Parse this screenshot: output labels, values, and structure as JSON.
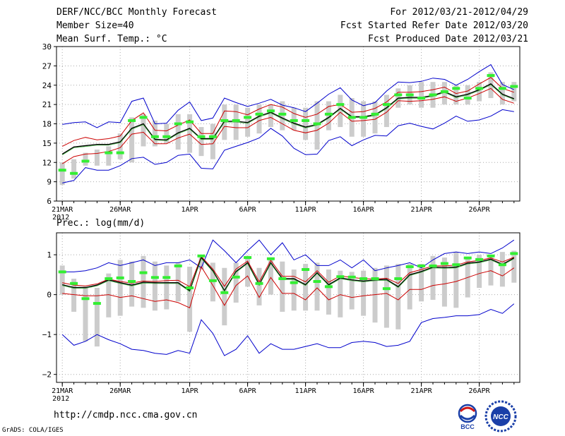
{
  "header": {
    "left": [
      "DERF/NCC/BCC Monthly Forecast",
      "Member Size=40",
      "Mean Surf. Temp.: °C"
    ],
    "right": [
      "For 2012/03/21-2012/04/29",
      "Fcst Started Refer Date 2012/03/20",
      "Fcst Produced Date 2012/03/21"
    ]
  },
  "panel2_label": "Prec.: log(mm/d)",
  "footer": {
    "url": "http://cmdp.ncc.cma.gov.cn",
    "credit": "GrADS: COLA/IGES"
  },
  "logos": {
    "bcc": "BCC",
    "ncc": "NCC"
  },
  "colors": {
    "median": "#000000",
    "quartile": "#cc0000",
    "extreme": "#0000cc",
    "mark": "#33ee33",
    "box": "#cccccc",
    "grid": "#aaaaaa"
  },
  "chart_data": [
    {
      "type": "line",
      "title": "Mean Surf. Temp.: °C",
      "x_ticks": [
        "21MAR",
        "26MAR",
        "1APR",
        "6APR",
        "11APR",
        "16APR",
        "21APR",
        "26APR"
      ],
      "x_tick_days": [
        1,
        6,
        12,
        17,
        22,
        27,
        32,
        37
      ],
      "year_label": "2012",
      "y_ticks": [
        6,
        9,
        12,
        15,
        18,
        21,
        24,
        27,
        30
      ],
      "ylim": [
        6,
        30
      ],
      "days": 40,
      "series": [
        {
          "name": "max",
          "values": [
            17.9,
            18.2,
            18.3,
            17.4,
            18.3,
            18.2,
            21.5,
            22.0,
            18.0,
            18.1,
            20.1,
            21.4,
            18.5,
            18.9,
            22.0,
            21.3,
            20.7,
            21.2,
            21.8,
            20.9,
            20.5,
            19.9,
            21.2,
            22.6,
            23.6,
            21.7,
            20.8,
            21.3,
            23.1,
            24.5,
            24.4,
            24.6,
            25.1,
            24.9,
            24.0,
            24.9,
            26.1,
            27.2,
            24.1,
            23.3
          ]
        },
        {
          "name": "q75",
          "values": [
            14.5,
            15.4,
            15.9,
            15.5,
            15.7,
            16.1,
            18.5,
            19.7,
            17.0,
            16.9,
            17.8,
            18.6,
            16.5,
            16.5,
            20.0,
            19.9,
            19.4,
            20.3,
            21.0,
            20.6,
            19.6,
            19.0,
            19.5,
            20.7,
            21.0,
            19.8,
            19.9,
            20.4,
            21.4,
            22.9,
            22.9,
            23.0,
            23.3,
            23.7,
            22.7,
            23.1,
            24.2,
            25.2,
            23.5,
            22.9
          ]
        },
        {
          "name": "median",
          "values": [
            13.3,
            14.4,
            14.6,
            14.8,
            14.8,
            15.2,
            17.3,
            18.0,
            15.6,
            15.5,
            16.6,
            17.3,
            15.7,
            15.7,
            18.4,
            18.4,
            18.2,
            19.2,
            19.8,
            18.9,
            18.1,
            17.5,
            17.9,
            19.0,
            20.4,
            19.1,
            19.1,
            19.4,
            20.5,
            22.0,
            22.1,
            22.1,
            22.4,
            23.0,
            22.2,
            22.6,
            23.3,
            24.2,
            22.6,
            21.9
          ]
        },
        {
          "name": "q25",
          "values": [
            11.8,
            12.9,
            13.3,
            13.4,
            13.7,
            14.3,
            16.4,
            16.7,
            14.9,
            14.9,
            15.8,
            16.4,
            14.8,
            14.9,
            17.6,
            17.4,
            17.4,
            18.5,
            19.0,
            18.0,
            17.0,
            16.6,
            17.0,
            18.1,
            19.8,
            18.4,
            18.5,
            18.7,
            19.8,
            21.6,
            21.5,
            21.6,
            21.8,
            22.2,
            21.5,
            22.0,
            22.7,
            23.5,
            21.8,
            21.2
          ]
        },
        {
          "name": "min",
          "values": [
            8.8,
            9.2,
            11.2,
            10.8,
            10.8,
            11.5,
            12.6,
            12.8,
            11.7,
            12.0,
            13.1,
            13.3,
            11.1,
            11.0,
            13.9,
            14.5,
            15.1,
            15.8,
            17.3,
            16.1,
            14.2,
            13.2,
            13.3,
            15.4,
            16.0,
            14.6,
            15.5,
            16.2,
            16.1,
            17.7,
            18.1,
            17.6,
            17.2,
            18.1,
            19.2,
            18.4,
            18.6,
            19.2,
            20.2,
            19.9
          ]
        },
        {
          "name": "hindcast",
          "values": [
            10.8,
            10.3,
            12.2,
            null,
            13.5,
            13.5,
            18.5,
            19.0,
            16.0,
            16.0,
            18.0,
            18.3,
            16.0,
            16.0,
            18.5,
            18.5,
            19.0,
            19.5,
            20.0,
            19.5,
            18.5,
            18.5,
            18.0,
            19.5,
            21.0,
            19.0,
            19.0,
            19.5,
            21.0,
            22.5,
            22.5,
            22.0,
            22.5,
            23.0,
            23.5,
            22.0,
            23.5,
            25.5,
            23.5,
            23.8
          ]
        },
        {
          "name": "box_low",
          "values": [
            8.5,
            9.5,
            11.5,
            11.5,
            11.5,
            12.5,
            12.0,
            14.5,
            14.5,
            15.0,
            14.0,
            13.5,
            13.0,
            12.5,
            15.5,
            15.5,
            16.0,
            16.5,
            17.5,
            17.0,
            17.0,
            15.5,
            14.0,
            17.0,
            17.5,
            16.0,
            16.0,
            16.5,
            17.5,
            20.5,
            21.0,
            20.5,
            20.5,
            21.0,
            21.0,
            21.0,
            21.5,
            22.0,
            21.0,
            21.5
          ]
        },
        {
          "name": "box_high",
          "values": [
            12.0,
            12.5,
            13.5,
            14.0,
            14.5,
            16.5,
            19.0,
            19.5,
            18.5,
            18.0,
            19.5,
            19.5,
            17.5,
            18.0,
            21.0,
            21.0,
            20.5,
            21.0,
            21.0,
            21.5,
            20.5,
            20.5,
            21.5,
            21.5,
            22.5,
            22.0,
            21.5,
            21.5,
            22.5,
            23.5,
            24.0,
            24.5,
            24.5,
            24.5,
            24.0,
            24.0,
            24.5,
            26.0,
            24.5,
            24.5
          ]
        }
      ]
    },
    {
      "type": "line",
      "title": "Prec.: log(mm/d)",
      "x_ticks": [
        "21MAR",
        "26MAR",
        "1APR",
        "6APR",
        "11APR",
        "16APR",
        "21APR",
        "26APR"
      ],
      "x_tick_days": [
        1,
        6,
        12,
        17,
        22,
        27,
        32,
        37
      ],
      "year_label": "2012",
      "y_ticks": [
        -2,
        -1,
        0,
        1
      ],
      "ylim": [
        -2.2,
        1.55
      ],
      "days": 40,
      "series": [
        {
          "name": "max",
          "values": [
            0.57,
            0.57,
            0.6,
            0.67,
            0.8,
            0.73,
            0.8,
            0.87,
            0.73,
            0.8,
            0.8,
            0.87,
            0.67,
            1.37,
            1.1,
            0.8,
            1.1,
            1.37,
            1.0,
            1.3,
            0.87,
            1.0,
            0.73,
            0.73,
            0.87,
            0.67,
            0.87,
            0.6,
            0.67,
            0.73,
            0.8,
            0.67,
            0.87,
            1.03,
            1.07,
            1.03,
            1.07,
            1.03,
            1.17,
            1.37
          ]
        },
        {
          "name": "q75",
          "values": [
            0.3,
            0.24,
            0.22,
            0.27,
            0.39,
            0.33,
            0.29,
            0.34,
            0.33,
            0.35,
            0.36,
            0.2,
            0.96,
            0.64,
            0.21,
            0.64,
            0.84,
            0.32,
            0.86,
            0.46,
            0.46,
            0.32,
            0.6,
            0.31,
            0.47,
            0.43,
            0.4,
            0.39,
            0.41,
            0.28,
            0.55,
            0.63,
            0.72,
            0.72,
            0.74,
            0.82,
            0.86,
            0.92,
            0.82,
            0.94
          ]
        },
        {
          "name": "median",
          "values": [
            0.25,
            0.18,
            0.18,
            0.24,
            0.37,
            0.3,
            0.24,
            0.31,
            0.3,
            0.3,
            0.3,
            0.1,
            0.93,
            0.6,
            0.1,
            0.58,
            0.8,
            0.25,
            0.8,
            0.4,
            0.4,
            0.25,
            0.55,
            0.25,
            0.42,
            0.37,
            0.34,
            0.37,
            0.38,
            0.2,
            0.5,
            0.58,
            0.69,
            0.68,
            0.69,
            0.79,
            0.82,
            0.89,
            0.76,
            0.92
          ]
        },
        {
          "name": "q25",
          "values": [
            0.03,
            0.0,
            -0.03,
            -0.03,
            0.0,
            -0.07,
            -0.03,
            -0.1,
            -0.17,
            -0.13,
            -0.2,
            -0.33,
            0.7,
            0.23,
            -0.27,
            0.23,
            0.47,
            -0.07,
            0.43,
            0.03,
            0.03,
            -0.13,
            0.17,
            -0.13,
            0.0,
            -0.07,
            -0.03,
            0.0,
            0.03,
            -0.13,
            0.13,
            0.13,
            0.23,
            0.27,
            0.33,
            0.43,
            0.53,
            0.6,
            0.47,
            0.67
          ]
        },
        {
          "name": "min",
          "values": [
            -1.0,
            -1.27,
            -1.17,
            -1.0,
            -1.13,
            -1.23,
            -1.37,
            -1.4,
            -1.47,
            -1.5,
            -1.4,
            -1.47,
            -0.63,
            -0.97,
            -1.53,
            -1.37,
            -1.03,
            -1.47,
            -1.23,
            -1.37,
            -1.37,
            -1.3,
            -1.23,
            -1.33,
            -1.33,
            -1.2,
            -1.17,
            -1.2,
            -1.3,
            -1.27,
            -1.17,
            -0.7,
            -0.6,
            -0.57,
            -0.53,
            -0.53,
            -0.5,
            -0.37,
            -0.47,
            -0.23
          ]
        },
        {
          "name": "hindcast",
          "values": [
            0.57,
            0.28,
            -0.1,
            -0.22,
            0.4,
            0.42,
            0.33,
            0.55,
            0.43,
            0.43,
            0.72,
            0.17,
            0.97,
            0.35,
            0.05,
            0.44,
            0.93,
            0.28,
            0.9,
            0.4,
            0.3,
            0.63,
            0.33,
            0.2,
            0.45,
            0.44,
            0.4,
            0.4,
            0.15,
            0.4,
            0.7,
            0.72,
            0.72,
            0.78,
            0.75,
            0.92,
            0.88,
            0.97,
            0.75,
            1.03
          ]
        },
        {
          "name": "box_low",
          "values": [
            0.0,
            -0.43,
            -1.17,
            -1.3,
            -0.57,
            -0.53,
            -0.3,
            -0.33,
            -0.4,
            -0.37,
            -0.17,
            -0.93,
            0.63,
            -0.17,
            -0.77,
            -0.2,
            0.2,
            -0.27,
            0.0,
            -0.43,
            -0.4,
            -0.4,
            -0.4,
            -0.5,
            -0.57,
            -0.37,
            -0.53,
            -0.7,
            -0.83,
            -0.87,
            -0.37,
            -0.17,
            -0.13,
            -0.3,
            -0.33,
            -0.07,
            0.17,
            0.23,
            0.2,
            0.3
          ]
        },
        {
          "name": "box_high",
          "values": [
            0.73,
            0.4,
            0.2,
            0.17,
            0.53,
            0.87,
            0.83,
            0.97,
            0.83,
            0.73,
            0.8,
            0.7,
            0.93,
            0.8,
            0.67,
            0.8,
            0.97,
            0.67,
            0.9,
            0.83,
            0.63,
            0.77,
            0.8,
            0.63,
            0.6,
            0.57,
            0.6,
            0.67,
            0.73,
            0.77,
            0.77,
            0.77,
            0.97,
            0.93,
            1.07,
            0.9,
            1.0,
            0.97,
            1.07,
            1.1
          ]
        }
      ]
    }
  ]
}
